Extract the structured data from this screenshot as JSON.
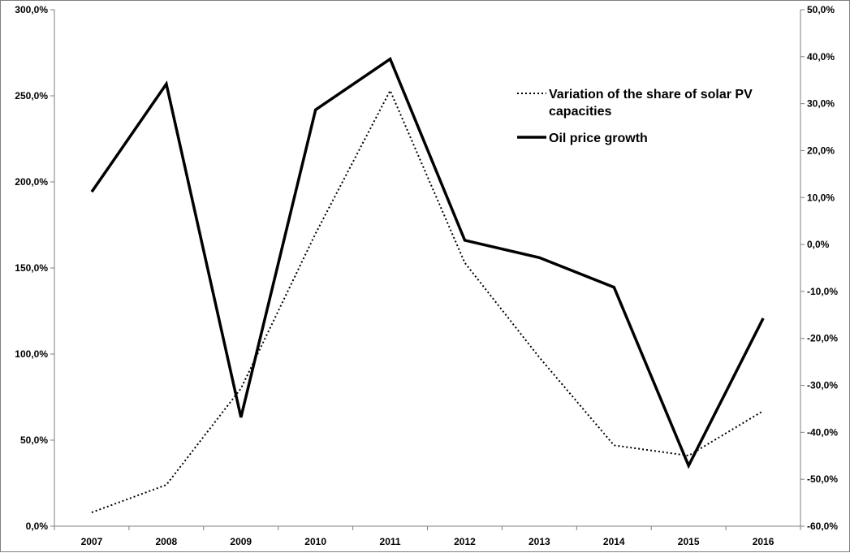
{
  "chart_data": {
    "type": "line",
    "x": [
      "2007",
      "2008",
      "2009",
      "2010",
      "2011",
      "2012",
      "2013",
      "2014",
      "2015",
      "2016"
    ],
    "y_left": {
      "ylim": [
        0,
        300
      ],
      "ticks": [
        0,
        50,
        100,
        150,
        200,
        250,
        300
      ],
      "tick_labels": [
        "0,0%",
        "50,0%",
        "100,0%",
        "150,0%",
        "200,0%",
        "250,0%",
        "300,0%"
      ]
    },
    "y_right": {
      "ylim": [
        -60,
        50
      ],
      "ticks": [
        -60,
        -50,
        -40,
        -30,
        -20,
        -10,
        0,
        10,
        20,
        30,
        40,
        50
      ],
      "tick_labels": [
        "-60,0%",
        "-50,0%",
        "-40,0%",
        "-30,0%",
        "-20,0%",
        "-10,0%",
        "0,0%",
        "10,0%",
        "20,0%",
        "30,0%",
        "40,0%",
        "50,0%"
      ]
    },
    "series": [
      {
        "name": "Variation of the share of solar PV capacities",
        "legend_lines": [
          "Variation of the share of solar PV",
          "capacities"
        ],
        "axis": "left",
        "style": "dotted",
        "color": "#000000",
        "values": [
          8,
          24,
          80,
          170,
          253,
          153,
          98,
          47,
          41,
          67
        ]
      },
      {
        "name": "Oil price growth",
        "legend_lines": [
          "Oil price growth"
        ],
        "axis": "right",
        "style": "solid",
        "color": "#000000",
        "values": [
          11.2,
          34.2,
          -36.8,
          28.7,
          39.5,
          0.9,
          -2.8,
          -9.1,
          -47.1,
          -15.7
        ]
      }
    ],
    "title": "",
    "xlabel": "",
    "ylabel": "",
    "grid": false,
    "legend_position": "top-right"
  }
}
